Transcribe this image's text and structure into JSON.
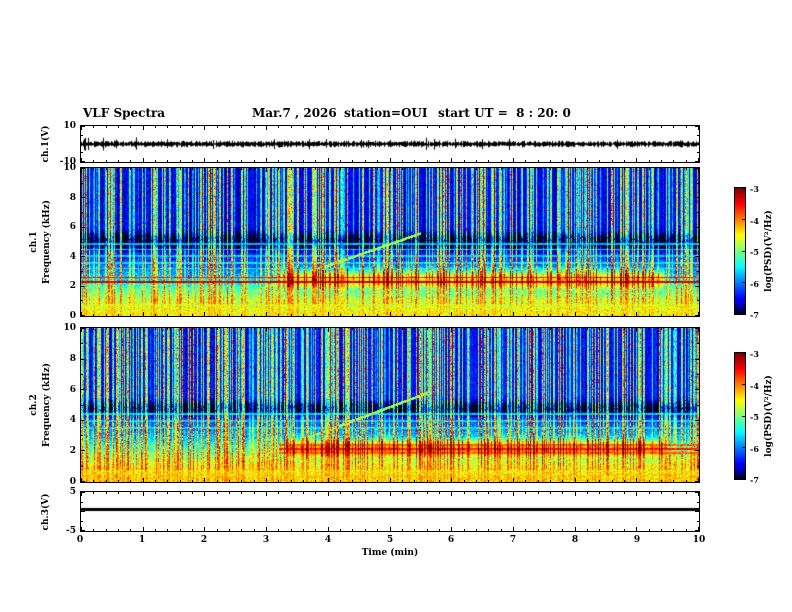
{
  "title": {
    "main": "VLF Spectra",
    "date": "Mar.7 , 2026",
    "station": "station=OUI",
    "start_ut": "start UT =  8 : 20: 0"
  },
  "axes": {
    "x": {
      "label": "Time (min)",
      "min": 0,
      "max": 10,
      "ticks": [
        0,
        1,
        2,
        3,
        4,
        5,
        6,
        7,
        8,
        9,
        10
      ]
    },
    "colorbar": {
      "label": "log(PSD)(V²/Hz)",
      "min": -7,
      "max": -3,
      "ticks": [
        -3,
        -4,
        -5,
        -6,
        -7
      ]
    }
  },
  "panels": {
    "ch1_wave": {
      "side_label": "ch.1(V)",
      "ymin": -10,
      "ymax": 10,
      "ytick_labels": [
        10,
        -10
      ]
    },
    "ch1_spec": {
      "side_label_1": "ch.1",
      "side_label_2": "Frequency (kHz)",
      "ymin": 0,
      "ymax": 10,
      "ytick_labels": [
        10,
        8,
        6,
        4,
        2,
        0
      ]
    },
    "ch2_spec": {
      "side_label_1": "ch.2",
      "side_label_2": "Frequency (kHz)",
      "ymin": 0,
      "ymax": 10,
      "ytick_labels": [
        10,
        8,
        6,
        4,
        2,
        0
      ]
    },
    "ch3_wave": {
      "side_label": "ch.3(V)",
      "ymin": -5,
      "ymax": 5,
      "ytick_labels": [
        5,
        -5
      ]
    }
  },
  "chart_data": {
    "type": "heatmap",
    "title": "VLF Spectra",
    "subtitle": "Mar.7 , 2026  station=OUI  start UT = 8:20:0",
    "x": {
      "label": "Time (min)",
      "range": [
        0,
        10
      ]
    },
    "z": {
      "label": "log(PSD)(V²/Hz)",
      "range": [
        -7,
        -3
      ],
      "colormap": "jet"
    },
    "panels": [
      {
        "id": "ch1_wave",
        "type": "line",
        "ylabel": "ch.1(V)",
        "ylim": [
          -10,
          10
        ],
        "signal": {
          "kind": "broadband_noise",
          "mean_v": 0,
          "amplitude_v": 1.2
        }
      },
      {
        "id": "ch1_spec",
        "type": "spectrogram",
        "ylabel": "Frequency (kHz)",
        "ylim": [
          0,
          10
        ],
        "noise_floor": -6.85,
        "features": {
          "low_freq_continuum": {
            "peak_level": -4.55,
            "sigma_khz": 2.0
          },
          "hiss_band": {
            "t_start_min": 3.0,
            "t_end_min": 9.55,
            "center_khz": 2.35,
            "sigma_khz": 0.95,
            "peak_level": -4.55
          },
          "sferic_streaks": {
            "column_density": 0.5,
            "max_level": -4.6
          },
          "dark_band": {
            "center_khz": 5.05,
            "sigma_khz": 0.5,
            "depth": 1.0
          },
          "power_line_harmonics": [
            {
              "freq_khz": 2.3,
              "level": -3.3
            },
            {
              "freq_khz": 2.6,
              "level": -3.55
            },
            {
              "freq_khz": 3.2,
              "level": -5.6
            },
            {
              "freq_khz": 3.6,
              "level": -5.6
            },
            {
              "freq_khz": 4.05,
              "level": -5.7
            },
            {
              "freq_khz": 4.5,
              "level": -5.7
            },
            {
              "freq_khz": 4.85,
              "level": -5.8
            }
          ],
          "rising_tone": {
            "t_start_min": 2.75,
            "t_end_min": 5.5,
            "f_start_khz": 1.6,
            "slope_khz_per_min": 1.45,
            "level": -4.9
          }
        }
      },
      {
        "id": "ch2_spec",
        "type": "spectrogram",
        "ylabel": "Frequency (kHz)",
        "ylim": [
          0,
          10
        ],
        "noise_floor": -6.8,
        "features": {
          "low_freq_continuum": {
            "peak_level": -4.4,
            "sigma_khz": 2.1
          },
          "hiss_band": {
            "t_start_min": 3.05,
            "t_end_min": 9.55,
            "center_khz": 2.1,
            "sigma_khz": 0.85,
            "peak_level": -4.2
          },
          "sferic_streaks": {
            "column_density": 0.5,
            "max_level": -4.5
          },
          "dark_band": {
            "center_khz": 4.75,
            "sigma_khz": 0.45,
            "depth": 1.0
          },
          "power_line_harmonics": [
            {
              "freq_khz": 1.9,
              "level": -3.9,
              "t_start_min": 3.2
            },
            {
              "freq_khz": 2.15,
              "level": -3.6,
              "t_start_min": 3.2
            },
            {
              "freq_khz": 2.4,
              "level": -3.9,
              "t_start_min": 3.2
            },
            {
              "freq_khz": 3.5,
              "level": -5.6
            },
            {
              "freq_khz": 3.95,
              "level": -5.7
            },
            {
              "freq_khz": 4.4,
              "level": -5.7
            }
          ],
          "rising_tone": {
            "t_start_min": 2.75,
            "t_end_min": 5.6,
            "f_start_khz": 1.5,
            "slope_khz_per_min": 1.5,
            "level": -4.9
          }
        }
      },
      {
        "id": "ch3_wave",
        "type": "line",
        "ylabel": "ch.3(V)",
        "ylim": [
          -5,
          5
        ],
        "signal": {
          "kind": "constant",
          "value_v": 0.5
        }
      }
    ]
  }
}
